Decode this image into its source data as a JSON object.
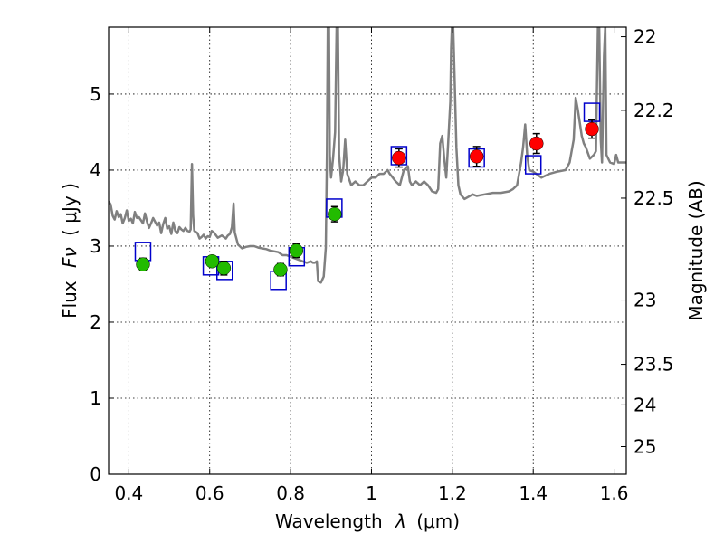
{
  "chart_data": {
    "type": "scatter",
    "xlabel": "Wavelength",
    "xlabel_symbol": "λ",
    "xlabel_unit": "(μm)",
    "ylabel": "Flux",
    "ylabel_symbol": "Fν",
    "ylabel_unit": "( μJy )",
    "y2label": "Magnitude (AB)",
    "xlim": [
      0.35,
      1.63
    ],
    "ylim": [
      0,
      5.88
    ],
    "grid": true,
    "xticks": [
      0.4,
      0.6,
      0.8,
      1.0,
      1.2,
      1.4,
      1.6
    ],
    "xtick_labels": [
      "0.4",
      "0.6",
      "0.8",
      "1",
      "1.2",
      "1.4",
      "1.6"
    ],
    "yticks": [
      0,
      1,
      2,
      3,
      4,
      5
    ],
    "ytick_labels": [
      "0",
      "1",
      "2",
      "3",
      "4",
      "5"
    ],
    "y2ticks": [
      {
        "label": "22",
        "mag": 22.0
      },
      {
        "label": "22.2",
        "mag": 22.2
      },
      {
        "label": "22.5",
        "mag": 22.5
      },
      {
        "label": "23",
        "mag": 23.0
      },
      {
        "label": "23.5",
        "mag": 23.5
      },
      {
        "label": "24",
        "mag": 24.0
      },
      {
        "label": "25",
        "mag": 25.0
      }
    ],
    "series": [
      {
        "marker": "circle",
        "color": "#22bb00",
        "points": [
          {
            "x": 0.435,
            "y": 2.76,
            "err": 0.08
          },
          {
            "x": 0.606,
            "y": 2.8,
            "err": 0.07
          },
          {
            "x": 0.635,
            "y": 2.71,
            "err": 0.09
          },
          {
            "x": 0.775,
            "y": 2.69,
            "err": 0.08
          },
          {
            "x": 0.814,
            "y": 2.94,
            "err": 0.09
          },
          {
            "x": 0.909,
            "y": 3.42,
            "err": 0.1
          }
        ]
      },
      {
        "marker": "circle",
        "color": "#ff0000",
        "points": [
          {
            "x": 1.068,
            "y": 4.16,
            "err": 0.12
          },
          {
            "x": 1.26,
            "y": 4.18,
            "err": 0.13
          },
          {
            "x": 1.408,
            "y": 4.35,
            "err": 0.13
          },
          {
            "x": 1.545,
            "y": 4.54,
            "err": 0.12
          }
        ]
      },
      {
        "marker": "square-open",
        "color": "#0000cc",
        "points": [
          {
            "x": 0.435,
            "y": 2.93
          },
          {
            "x": 0.603,
            "y": 2.74
          },
          {
            "x": 0.637,
            "y": 2.68
          },
          {
            "x": 0.77,
            "y": 2.55
          },
          {
            "x": 0.815,
            "y": 2.86
          },
          {
            "x": 0.908,
            "y": 3.5
          },
          {
            "x": 1.068,
            "y": 4.19
          },
          {
            "x": 1.26,
            "y": 4.16
          },
          {
            "x": 1.4,
            "y": 4.07
          },
          {
            "x": 1.545,
            "y": 4.76
          }
        ]
      },
      {
        "marker": "line",
        "color": "#808080",
        "points": [
          [
            0.35,
            3.59
          ],
          [
            0.355,
            3.55
          ],
          [
            0.36,
            3.4
          ],
          [
            0.365,
            3.35
          ],
          [
            0.37,
            3.46
          ],
          [
            0.375,
            3.38
          ],
          [
            0.38,
            3.42
          ],
          [
            0.385,
            3.3
          ],
          [
            0.39,
            3.37
          ],
          [
            0.395,
            3.47
          ],
          [
            0.4,
            3.33
          ],
          [
            0.405,
            3.36
          ],
          [
            0.41,
            3.3
          ],
          [
            0.415,
            3.45
          ],
          [
            0.42,
            3.37
          ],
          [
            0.425,
            3.38
          ],
          [
            0.43,
            3.34
          ],
          [
            0.435,
            3.3
          ],
          [
            0.44,
            3.43
          ],
          [
            0.445,
            3.32
          ],
          [
            0.45,
            3.24
          ],
          [
            0.455,
            3.3
          ],
          [
            0.46,
            3.37
          ],
          [
            0.465,
            3.32
          ],
          [
            0.47,
            3.27
          ],
          [
            0.475,
            3.31
          ],
          [
            0.48,
            3.17
          ],
          [
            0.485,
            3.29
          ],
          [
            0.49,
            3.37
          ],
          [
            0.495,
            3.23
          ],
          [
            0.5,
            3.26
          ],
          [
            0.505,
            3.16
          ],
          [
            0.51,
            3.31
          ],
          [
            0.515,
            3.2
          ],
          [
            0.52,
            3.17
          ],
          [
            0.525,
            3.25
          ],
          [
            0.53,
            3.22
          ],
          [
            0.535,
            3.2
          ],
          [
            0.54,
            3.24
          ],
          [
            0.545,
            3.2
          ],
          [
            0.55,
            3.19
          ],
          [
            0.553,
            3.22
          ],
          [
            0.556,
            4.08
          ],
          [
            0.559,
            3.4
          ],
          [
            0.562,
            3.2
          ],
          [
            0.57,
            3.17
          ],
          [
            0.575,
            3.1
          ],
          [
            0.58,
            3.12
          ],
          [
            0.585,
            3.15
          ],
          [
            0.59,
            3.1
          ],
          [
            0.595,
            3.13
          ],
          [
            0.6,
            3.12
          ],
          [
            0.605,
            3.2
          ],
          [
            0.61,
            3.18
          ],
          [
            0.62,
            3.11
          ],
          [
            0.63,
            3.14
          ],
          [
            0.64,
            3.1
          ],
          [
            0.645,
            3.14
          ],
          [
            0.65,
            3.16
          ],
          [
            0.655,
            3.25
          ],
          [
            0.659,
            3.56
          ],
          [
            0.662,
            3.18
          ],
          [
            0.67,
            3.02
          ],
          [
            0.68,
            2.97
          ],
          [
            0.69,
            2.99
          ],
          [
            0.7,
            3.0
          ],
          [
            0.71,
            3.0
          ],
          [
            0.72,
            2.98
          ],
          [
            0.73,
            2.97
          ],
          [
            0.74,
            2.96
          ],
          [
            0.75,
            2.94
          ],
          [
            0.76,
            2.93
          ],
          [
            0.77,
            2.92
          ],
          [
            0.78,
            2.88
          ],
          [
            0.79,
            2.88
          ],
          [
            0.8,
            2.86
          ],
          [
            0.81,
            2.84
          ],
          [
            0.82,
            2.82
          ],
          [
            0.83,
            2.8
          ],
          [
            0.84,
            2.78
          ],
          [
            0.85,
            2.8
          ],
          [
            0.855,
            2.78
          ],
          [
            0.86,
            2.78
          ],
          [
            0.865,
            2.8
          ],
          [
            0.868,
            2.54
          ],
          [
            0.875,
            2.52
          ],
          [
            0.882,
            2.6
          ],
          [
            0.887,
            2.98
          ],
          [
            0.89,
            4.25
          ],
          [
            0.892,
            5.9
          ],
          [
            0.895,
            5.9
          ],
          [
            0.897,
            4.2
          ],
          [
            0.9,
            3.9
          ],
          [
            0.905,
            4.15
          ],
          [
            0.91,
            4.5
          ],
          [
            0.914,
            5.9
          ],
          [
            0.917,
            5.9
          ],
          [
            0.92,
            4.2
          ],
          [
            0.925,
            3.85
          ],
          [
            0.93,
            4.0
          ],
          [
            0.935,
            4.4
          ],
          [
            0.94,
            3.95
          ],
          [
            0.95,
            3.8
          ],
          [
            0.96,
            3.85
          ],
          [
            0.97,
            3.8
          ],
          [
            0.98,
            3.8
          ],
          [
            0.99,
            3.85
          ],
          [
            1.0,
            3.9
          ],
          [
            1.01,
            3.9
          ],
          [
            1.02,
            3.95
          ],
          [
            1.03,
            3.95
          ],
          [
            1.04,
            4.0
          ],
          [
            1.045,
            3.95
          ],
          [
            1.05,
            3.92
          ],
          [
            1.06,
            3.85
          ],
          [
            1.07,
            3.8
          ],
          [
            1.08,
            4.0
          ],
          [
            1.09,
            4.05
          ],
          [
            1.095,
            3.85
          ],
          [
            1.1,
            3.8
          ],
          [
            1.11,
            3.85
          ],
          [
            1.12,
            3.8
          ],
          [
            1.13,
            3.85
          ],
          [
            1.14,
            3.8
          ],
          [
            1.15,
            3.72
          ],
          [
            1.16,
            3.7
          ],
          [
            1.165,
            3.75
          ],
          [
            1.17,
            4.35
          ],
          [
            1.175,
            4.45
          ],
          [
            1.18,
            4.15
          ],
          [
            1.185,
            3.9
          ],
          [
            1.19,
            4.4
          ],
          [
            1.195,
            4.9
          ],
          [
            1.197,
            5.6
          ],
          [
            1.199,
            5.9
          ],
          [
            1.202,
            5.9
          ],
          [
            1.205,
            5.3
          ],
          [
            1.21,
            4.3
          ],
          [
            1.215,
            3.8
          ],
          [
            1.22,
            3.68
          ],
          [
            1.23,
            3.62
          ],
          [
            1.24,
            3.65
          ],
          [
            1.25,
            3.68
          ],
          [
            1.26,
            3.66
          ],
          [
            1.28,
            3.68
          ],
          [
            1.3,
            3.7
          ],
          [
            1.32,
            3.7
          ],
          [
            1.34,
            3.72
          ],
          [
            1.35,
            3.75
          ],
          [
            1.36,
            3.8
          ],
          [
            1.37,
            4.1
          ],
          [
            1.375,
            4.3
          ],
          [
            1.38,
            4.6
          ],
          [
            1.385,
            4.2
          ],
          [
            1.39,
            4.0
          ],
          [
            1.4,
            3.98
          ],
          [
            1.42,
            3.9
          ],
          [
            1.44,
            3.95
          ],
          [
            1.46,
            3.98
          ],
          [
            1.48,
            4.0
          ],
          [
            1.49,
            4.1
          ],
          [
            1.5,
            4.4
          ],
          [
            1.505,
            4.95
          ],
          [
            1.51,
            4.8
          ],
          [
            1.52,
            4.45
          ],
          [
            1.525,
            4.35
          ],
          [
            1.53,
            4.3
          ],
          [
            1.54,
            4.15
          ],
          [
            1.55,
            4.2
          ],
          [
            1.555,
            4.25
          ],
          [
            1.56,
            5.9
          ],
          [
            1.563,
            5.9
          ],
          [
            1.567,
            4.4
          ],
          [
            1.57,
            4.1
          ],
          [
            1.575,
            5.5
          ],
          [
            1.578,
            5.9
          ],
          [
            1.581,
            4.2
          ],
          [
            1.59,
            4.1
          ],
          [
            1.6,
            4.08
          ],
          [
            1.605,
            4.2
          ],
          [
            1.61,
            4.1
          ],
          [
            1.62,
            4.1
          ],
          [
            1.63,
            4.1
          ]
        ]
      }
    ]
  }
}
